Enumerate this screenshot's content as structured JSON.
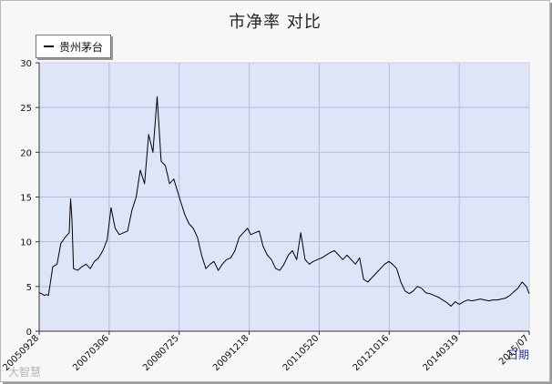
{
  "chart_data": {
    "type": "line",
    "title": "市净率  对比",
    "xlabel": "日期",
    "ylabel": "",
    "ylim": [
      0,
      30
    ],
    "yticks": [
      0,
      5,
      10,
      15,
      20,
      25,
      30
    ],
    "x_tick_labels": [
      "20050928",
      "20070306",
      "20080725",
      "20091218",
      "20110520",
      "20121016",
      "20140319",
      "2015/07"
    ],
    "grid": true,
    "legend_position": "top-left",
    "series": [
      {
        "name": "贵州茅台",
        "color": "#000000",
        "x": [
          "2005-09-28",
          "2005-10-15",
          "2005-11-05",
          "2005-11-20",
          "2005-12-05",
          "2006-01-05",
          "2006-02-05",
          "2006-03-05",
          "2006-04-05",
          "2006-05-05",
          "2006-05-15",
          "2006-05-25",
          "2006-06-05",
          "2006-07-05",
          "2006-08-05",
          "2006-09-05",
          "2006-10-05",
          "2006-11-05",
          "2006-12-05",
          "2007-01-05",
          "2007-02-05",
          "2007-03-06",
          "2007-04-05",
          "2007-05-05",
          "2007-06-05",
          "2007-07-05",
          "2007-08-05",
          "2007-09-05",
          "2007-10-05",
          "2007-11-05",
          "2007-12-05",
          "2008-01-05",
          "2008-02-05",
          "2008-03-05",
          "2008-04-05",
          "2008-05-05",
          "2008-06-05",
          "2008-07-05",
          "2008-07-25",
          "2008-08-25",
          "2008-09-25",
          "2008-10-25",
          "2008-11-25",
          "2008-12-25",
          "2009-01-25",
          "2009-02-25",
          "2009-03-25",
          "2009-04-25",
          "2009-05-25",
          "2009-06-25",
          "2009-07-25",
          "2009-08-25",
          "2009-09-25",
          "2009-10-25",
          "2009-11-25",
          "2009-12-18",
          "2010-01-18",
          "2010-02-18",
          "2010-03-18",
          "2010-04-18",
          "2010-05-18",
          "2010-06-18",
          "2010-07-18",
          "2010-08-18",
          "2010-09-18",
          "2010-10-18",
          "2010-11-18",
          "2010-12-18",
          "2011-01-18",
          "2011-02-18",
          "2011-03-18",
          "2011-04-18",
          "2011-05-20",
          "2011-06-20",
          "2011-07-20",
          "2011-08-20",
          "2011-09-20",
          "2011-10-20",
          "2011-11-20",
          "2011-12-20",
          "2012-01-20",
          "2012-02-20",
          "2012-03-20",
          "2012-04-20",
          "2012-05-20",
          "2012-06-20",
          "2012-07-20",
          "2012-08-20",
          "2012-09-20",
          "2012-10-16",
          "2012-11-16",
          "2012-12-16",
          "2013-01-16",
          "2013-02-16",
          "2013-03-16",
          "2013-04-16",
          "2013-05-16",
          "2013-06-16",
          "2013-07-16",
          "2013-08-16",
          "2013-09-16",
          "2013-10-16",
          "2013-11-16",
          "2013-12-16",
          "2014-01-16",
          "2014-02-16",
          "2014-03-19",
          "2014-04-19",
          "2014-05-19",
          "2014-06-19",
          "2014-07-19",
          "2014-08-19",
          "2014-09-19",
          "2014-10-19",
          "2014-11-19",
          "2014-12-19",
          "2015-01-19",
          "2015-02-19",
          "2015-03-19",
          "2015-04-19",
          "2015-05-19",
          "2015-06-19",
          "2015-07-10"
        ],
        "y": [
          4.3,
          4.2,
          4.0,
          4.1,
          4.0,
          7.2,
          7.5,
          9.8,
          10.5,
          11.0,
          14.8,
          12.5,
          7.0,
          6.8,
          7.2,
          7.5,
          7.0,
          7.8,
          8.2,
          9.0,
          10.2,
          13.8,
          11.5,
          10.8,
          11.0,
          11.2,
          13.5,
          15.0,
          18.0,
          16.5,
          22.0,
          20.0,
          26.2,
          19.0,
          18.5,
          16.5,
          17.0,
          15.5,
          14.5,
          13.0,
          12.0,
          11.5,
          10.5,
          8.5,
          7.0,
          7.5,
          7.8,
          6.8,
          7.5,
          8.0,
          8.2,
          9.0,
          10.5,
          11.0,
          11.5,
          10.8,
          11.0,
          11.2,
          9.5,
          8.5,
          8.0,
          7.0,
          6.8,
          7.5,
          8.5,
          9.0,
          8.0,
          11.0,
          8.0,
          7.5,
          7.8,
          8.0,
          8.2,
          8.5,
          8.8,
          9.0,
          8.5,
          8.0,
          8.5,
          8.0,
          7.5,
          8.2,
          5.8,
          5.5,
          6.0,
          6.5,
          7.0,
          7.5,
          7.8,
          7.5,
          7.0,
          5.5,
          4.5,
          4.2,
          4.5,
          5.0,
          4.8,
          4.3,
          4.2,
          4.0,
          3.8,
          3.5,
          3.2,
          2.8,
          3.3,
          3.0,
          3.3,
          3.5,
          3.4,
          3.5,
          3.6,
          3.5,
          3.4,
          3.5,
          3.5,
          3.6,
          3.7,
          4.0,
          4.4,
          4.8,
          5.5,
          5.0,
          4.2
        ]
      }
    ]
  },
  "watermark_text": "大智慧"
}
